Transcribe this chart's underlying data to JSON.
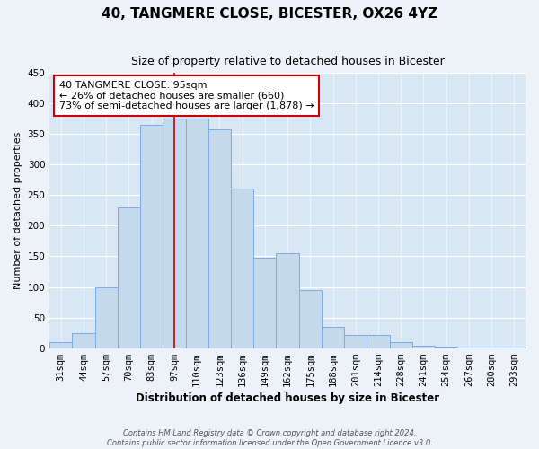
{
  "title": "40, TANGMERE CLOSE, BICESTER, OX26 4YZ",
  "subtitle": "Size of property relative to detached houses in Bicester",
  "xlabel": "Distribution of detached houses by size in Bicester",
  "ylabel": "Number of detached properties",
  "categories": [
    "31sqm",
    "44sqm",
    "57sqm",
    "70sqm",
    "83sqm",
    "97sqm",
    "110sqm",
    "123sqm",
    "136sqm",
    "149sqm",
    "162sqm",
    "175sqm",
    "188sqm",
    "201sqm",
    "214sqm",
    "228sqm",
    "241sqm",
    "254sqm",
    "267sqm",
    "280sqm",
    "293sqm"
  ],
  "values": [
    10,
    25,
    100,
    230,
    365,
    375,
    375,
    358,
    260,
    148,
    155,
    95,
    35,
    22,
    22,
    10,
    4,
    2,
    1,
    1,
    1
  ],
  "bar_color": "#c5d9ec",
  "bar_edge_color": "#7aabe8",
  "vline_x_index": 5,
  "vline_color": "#cc0000",
  "annotation_line1": "40 TANGMERE CLOSE: 95sqm",
  "annotation_line2": "← 26% of detached houses are smaller (660)",
  "annotation_line3": "73% of semi-detached houses are larger (1,878) →",
  "annotation_box_color": "white",
  "annotation_box_edge_color": "#cc0000",
  "ylim": [
    0,
    450
  ],
  "yticks": [
    0,
    50,
    100,
    150,
    200,
    250,
    300,
    350,
    400,
    450
  ],
  "footer_line1": "Contains HM Land Registry data © Crown copyright and database right 2024.",
  "footer_line2": "Contains public sector information licensed under the Open Government Licence v3.0.",
  "bg_color": "#edf2f8",
  "plot_bg_color": "#d9e6f4",
  "grid_color": "#ffffff",
  "title_fontsize": 11,
  "subtitle_fontsize": 9,
  "ylabel_fontsize": 8,
  "xlabel_fontsize": 8.5,
  "tick_fontsize": 7.5,
  "annotation_fontsize": 8,
  "footer_fontsize": 6
}
